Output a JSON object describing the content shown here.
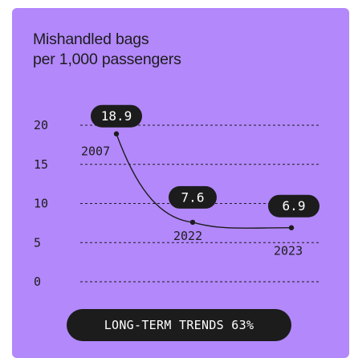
{
  "title_lines": [
    "Mishandled bags",
    "per 1,000 passengers"
  ],
  "footer": "LONG-TERM TRENDS 63%",
  "colors": {
    "background": "#b388fb",
    "ink": "#1c1c1c",
    "pill_text": "#ffffff"
  },
  "chart_data": {
    "type": "line",
    "title": "Mishandled bags per 1,000 passengers",
    "xlabel": "",
    "ylabel": "",
    "ylim": [
      0,
      20
    ],
    "y_ticks": [
      0,
      5,
      10,
      15,
      20
    ],
    "y_tick_labels": [
      "0",
      "5",
      "10",
      "15",
      "20"
    ],
    "grid": true,
    "legend": "none",
    "points": [
      {
        "year": "2007",
        "value": 18.9,
        "label": "18.9"
      },
      {
        "year": "2022",
        "value": 7.6,
        "label": "7.6"
      },
      {
        "year": "2023",
        "value": 6.9,
        "label": "6.9"
      }
    ]
  }
}
